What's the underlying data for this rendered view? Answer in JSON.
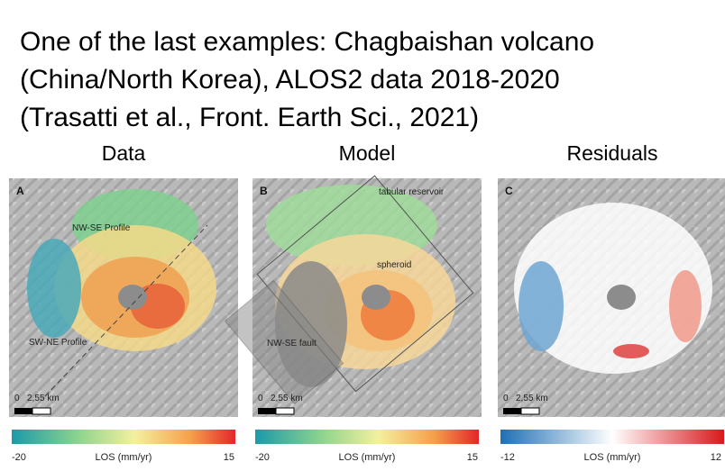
{
  "header": {
    "lines": [
      "One of the last examples: Chagbaishan volcano",
      "(China/North Korea), ALOS2 data 2018-2020",
      "(Trasatti et al., Front. Earth Sci., 2021)"
    ]
  },
  "panels": [
    {
      "heading": "Data",
      "letter": "A",
      "annotations": [
        "NW-SE Profile",
        "SW-NE Profile"
      ],
      "scale": [
        "0",
        "2,5",
        "5 km"
      ],
      "colorbar": {
        "min": -20,
        "label": "LOS (mm/yr)",
        "max": 15
      }
    },
    {
      "heading": "Model",
      "letter": "B",
      "annotations": [
        "tabular reservoir",
        "spheroid",
        "NW-SE fault"
      ],
      "scale": [
        "0",
        "2,5",
        "5 km"
      ],
      "colorbar": {
        "min": -20,
        "label": "LOS (mm/yr)",
        "max": 15
      }
    },
    {
      "heading": "Residuals",
      "letter": "C",
      "annotations": [],
      "scale": [
        "0",
        "2,5",
        "5 km"
      ],
      "colorbar": {
        "min": -12,
        "label": "LOS (mm/yr)",
        "max": 12
      }
    }
  ]
}
